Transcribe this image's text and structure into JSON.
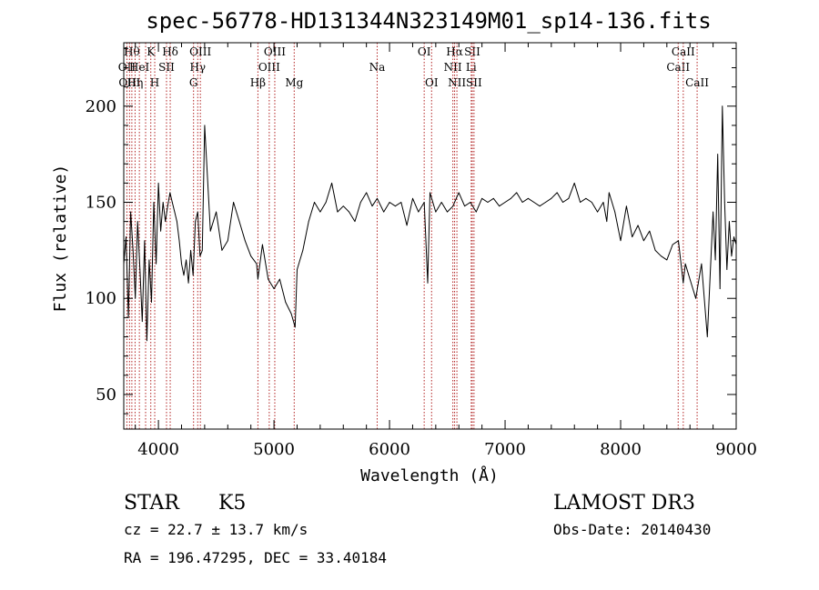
{
  "chart_data": {
    "type": "line",
    "title": "spec-56778-HD131344N323149M01_sp14-136.fits",
    "xlabel": "Wavelength (Å)",
    "ylabel": "Flux (relative)",
    "xlim": [
      3700,
      9000
    ],
    "ylim": [
      32,
      233
    ],
    "x_ticks": [
      4000,
      5000,
      6000,
      7000,
      8000,
      9000
    ],
    "y_ticks": [
      50,
      100,
      150,
      200
    ],
    "grid": false,
    "line_color": "#000000",
    "marker_color": "#b22222",
    "series": [
      {
        "x": [
          3700,
          3720,
          3740,
          3760,
          3780,
          3800,
          3820,
          3840,
          3860,
          3880,
          3900,
          3920,
          3940,
          3960,
          3980,
          4000,
          4020,
          4040,
          4060,
          4080,
          4100,
          4120,
          4140,
          4160,
          4180,
          4200,
          4220,
          4240,
          4260,
          4280,
          4300,
          4320,
          4340,
          4360,
          4380,
          4400,
          4450,
          4500,
          4550,
          4600,
          4650,
          4700,
          4750,
          4800,
          4850,
          4861,
          4900,
          4950,
          5000,
          5050,
          5100,
          5150,
          5183,
          5200,
          5250,
          5300,
          5350,
          5400,
          5450,
          5500,
          5550,
          5600,
          5650,
          5700,
          5750,
          5800,
          5850,
          5893,
          5950,
          6000,
          6050,
          6100,
          6150,
          6200,
          6250,
          6300,
          6330,
          6350,
          6400,
          6450,
          6500,
          6550,
          6563,
          6600,
          6650,
          6700,
          6750,
          6800,
          6850,
          6900,
          6950,
          7000,
          7050,
          7100,
          7150,
          7200,
          7250,
          7300,
          7350,
          7400,
          7450,
          7500,
          7550,
          7600,
          7650,
          7700,
          7750,
          7800,
          7850,
          7880,
          7900,
          7950,
          8000,
          8050,
          8100,
          8150,
          8200,
          8250,
          8300,
          8350,
          8400,
          8450,
          8500,
          8542,
          8560,
          8600,
          8650,
          8700,
          8750,
          8800,
          8820,
          8840,
          8860,
          8880,
          8900,
          8920,
          8940,
          8960,
          8980,
          9000
        ],
        "y": [
          118,
          132,
          90,
          145,
          125,
          100,
          140,
          115,
          88,
          130,
          78,
          120,
          98,
          150,
          118,
          160,
          135,
          150,
          140,
          148,
          155,
          150,
          145,
          140,
          130,
          118,
          112,
          120,
          108,
          125,
          112,
          140,
          145,
          122,
          125,
          190,
          135,
          145,
          125,
          130,
          150,
          140,
          130,
          122,
          118,
          110,
          128,
          110,
          105,
          110,
          98,
          92,
          85,
          115,
          125,
          140,
          150,
          145,
          150,
          160,
          145,
          148,
          145,
          140,
          150,
          155,
          148,
          152,
          145,
          150,
          148,
          150,
          138,
          152,
          145,
          150,
          108,
          155,
          145,
          150,
          145,
          148,
          150,
          155,
          148,
          150,
          145,
          152,
          150,
          152,
          148,
          150,
          152,
          155,
          150,
          152,
          150,
          148,
          150,
          152,
          155,
          150,
          152,
          160,
          150,
          152,
          150,
          145,
          150,
          140,
          155,
          145,
          130,
          148,
          132,
          138,
          130,
          135,
          125,
          122,
          120,
          128,
          130,
          108,
          118,
          110,
          100,
          118,
          80,
          145,
          120,
          175,
          105,
          200,
          150,
          115,
          140,
          122,
          132,
          128
        ]
      }
    ],
    "line_markers": [
      {
        "x": 3727,
        "label": "OII",
        "row": 1
      },
      {
        "x": 3750,
        "label": "OIII",
        "row": 2
      },
      {
        "x": 3770,
        "label": "Hθ",
        "row": 0
      },
      {
        "x": 3798,
        "label": "Hη",
        "row": 2
      },
      {
        "x": 3835,
        "label": "HeI",
        "row": 1
      },
      {
        "x": 3889,
        "label": "",
        "row": 0
      },
      {
        "x": 3934,
        "label": "K",
        "row": 0
      },
      {
        "x": 3968,
        "label": "H",
        "row": 2
      },
      {
        "x": 4070,
        "label": "SII",
        "row": 1
      },
      {
        "x": 4102,
        "label": "Hδ",
        "row": 0
      },
      {
        "x": 4304,
        "label": "G",
        "row": 2
      },
      {
        "x": 4340,
        "label": "Hγ",
        "row": 1
      },
      {
        "x": 4363,
        "label": "OIII",
        "row": 0
      },
      {
        "x": 4861,
        "label": "Hβ",
        "row": 2
      },
      {
        "x": 4959,
        "label": "OIII",
        "row": 1
      },
      {
        "x": 5007,
        "label": "OIII",
        "row": 0
      },
      {
        "x": 5175,
        "label": "Mg",
        "row": 2
      },
      {
        "x": 5893,
        "label": "Na",
        "row": 1
      },
      {
        "x": 6300,
        "label": "OI",
        "row": 0
      },
      {
        "x": 6364,
        "label": "OI",
        "row": 2
      },
      {
        "x": 6548,
        "label": "NII",
        "row": 1
      },
      {
        "x": 6563,
        "label": "Hα",
        "row": 0
      },
      {
        "x": 6583,
        "label": "NII",
        "row": 2
      },
      {
        "x": 6707,
        "label": "Li",
        "row": 1
      },
      {
        "x": 6716,
        "label": "SII",
        "row": 0
      },
      {
        "x": 6731,
        "label": "SII",
        "row": 2
      },
      {
        "x": 8498,
        "label": "CaII",
        "row": 1
      },
      {
        "x": 8542,
        "label": "CaII",
        "row": 0
      },
      {
        "x": 8662,
        "label": "CaII",
        "row": 2
      }
    ]
  },
  "info": {
    "class": "STAR",
    "subclass": "K5",
    "survey": "LAMOST DR3",
    "cz": "cz = 22.7 ± 13.7 km/s",
    "obs_date": "Obs-Date: 20140430",
    "coords": "RA = 196.47295, DEC =  33.40184"
  }
}
